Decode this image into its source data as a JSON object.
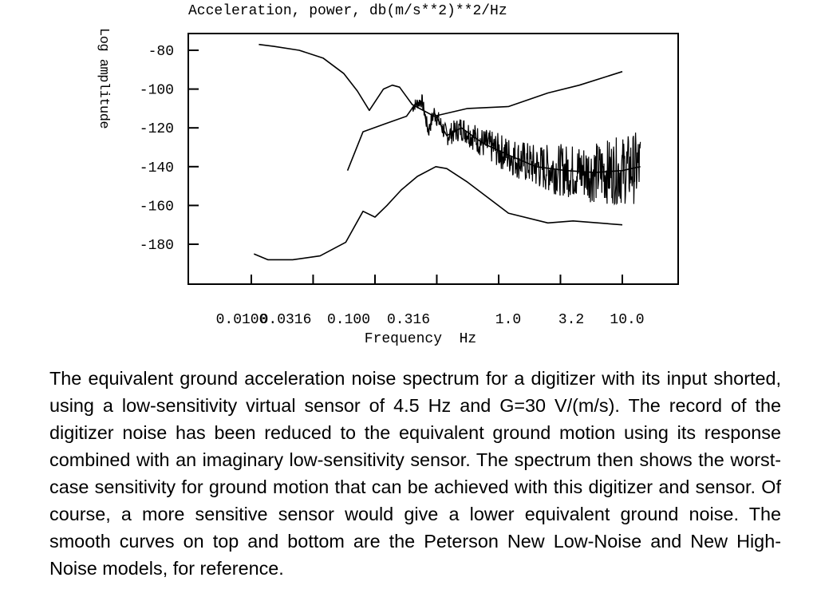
{
  "chart_data": {
    "type": "line",
    "title": "Acceleration, power, db(m/s**2)**2/Hz",
    "xlabel": "Frequency  Hz",
    "ylabel": "Log amplitude",
    "xscale": "log",
    "x_ticks": [
      0.01,
      0.0316,
      0.1,
      0.316,
      1.0,
      3.16,
      10.0
    ],
    "x_tick_labels": [
      "0.0100",
      "0.0316",
      "0.100",
      "0.316",
      "1.0",
      "3.2",
      "10.0"
    ],
    "y_ticks": [
      -80,
      -100,
      -120,
      -140,
      -160,
      -180
    ],
    "y_tick_labels": [
      "-80",
      "-100",
      "-120",
      "-140",
      "-160",
      "-180"
    ],
    "xlim": [
      0.0032,
      32
    ],
    "ylim": [
      -200,
      -72
    ],
    "grid": false,
    "legend": "none",
    "series": [
      {
        "x": [
          0.0115,
          0.0152,
          0.0244,
          0.038,
          0.056,
          0.072,
          0.09,
          0.117,
          0.138,
          0.158,
          0.2,
          0.3,
          0.56,
          1.2,
          2.5,
          4.5,
          10.0
        ],
        "y": [
          -77,
          -78,
          -80,
          -84,
          -92,
          -101,
          -111,
          -100,
          -98,
          -99,
          -108,
          -114,
          -110,
          -109,
          -102,
          -98,
          -91
        ]
      },
      {
        "x": [
          0.0105,
          0.0136,
          0.0216,
          0.036,
          0.058,
          0.08,
          0.1,
          0.125,
          0.163,
          0.22,
          0.31,
          0.38,
          0.56,
          1.2,
          2.5,
          4.0,
          10.0
        ],
        "y": [
          -185,
          -188,
          -188,
          -186,
          -179,
          -163,
          -166,
          -160,
          -152,
          -145,
          -140,
          -141,
          -148,
          -164,
          -169,
          -168,
          -170
        ]
      },
      {
        "x": [
          0.06,
          0.08,
          0.12,
          0.18,
          0.21,
          0.24,
          0.27,
          0.3,
          0.38,
          0.5,
          0.75,
          1.2,
          2.0,
          3.5,
          6.0,
          10.0,
          14.0
        ],
        "y": [
          -142,
          -122,
          -118,
          -114,
          -108,
          -106,
          -122,
          -112,
          -124,
          -120,
          -128,
          -134,
          -140,
          -142,
          -143,
          -142,
          -140
        ]
      }
    ]
  },
  "caption": "The equivalent ground acceleration noise spectrum for a digitizer with its input shorted, using a low-sensitivity virtual sensor of 4.5 Hz and G=30 V/(m/s). The record of the digitizer noise has been reduced to the equivalent ground motion using its response combined with an imaginary low-sensitivity sensor. The spectrum then shows the worst-case sensitivity for ground motion that can be achieved with this digitizer and sensor. Of course, a more sensitive sensor would give a lower equivalent ground noise. The smooth curves on top and bottom are the Peterson New Low-Noise and New High-Noise models, for reference."
}
